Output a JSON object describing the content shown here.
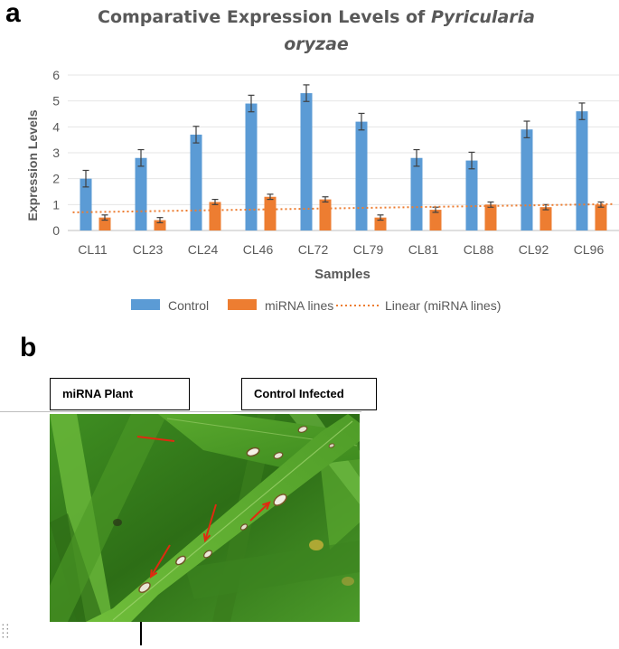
{
  "panel_a_label": "a",
  "panel_b_label": "b",
  "chart_data": {
    "type": "bar",
    "title_part1": "Comparative Expression Levels of ",
    "title_italic_1": "Pyricularia",
    "title_italic_2": "oryzae",
    "xlabel": "Samples",
    "ylabel": "Expression Levels",
    "ylim": [
      0,
      6
    ],
    "yticks": [
      "0",
      "1",
      "2",
      "3",
      "4",
      "5",
      "6"
    ],
    "categories": [
      "CL11",
      "CL23",
      "CL24",
      "CL46",
      "CL72",
      "CL79",
      "CL81",
      "CL88",
      "CL92",
      "CL96"
    ],
    "series": [
      {
        "name": "Control",
        "color": "#5b9bd5",
        "values": [
          2.0,
          2.8,
          3.7,
          4.9,
          5.3,
          4.2,
          2.8,
          2.7,
          3.9,
          4.6
        ],
        "errors": [
          0.32,
          0.32,
          0.32,
          0.32,
          0.32,
          0.32,
          0.32,
          0.32,
          0.32,
          0.32
        ]
      },
      {
        "name": "miRNA lines",
        "color": "#ed7d31",
        "values": [
          0.5,
          0.4,
          1.1,
          1.3,
          1.2,
          0.5,
          0.8,
          1.0,
          0.9,
          1.0
        ],
        "errors": [
          0.1,
          0.1,
          0.1,
          0.1,
          0.1,
          0.1,
          0.1,
          0.1,
          0.1,
          0.1
        ]
      }
    ],
    "trendline": {
      "name": "Linear (miRNA lines)",
      "color": "#ed7d31",
      "style": "dotted",
      "start": 0.7,
      "end": 1.02
    },
    "legend_position": "bottom"
  },
  "photo": {
    "left_label": "miRNA Plant",
    "right_label": "Control Infected",
    "arrow_color": "#e02a10"
  }
}
